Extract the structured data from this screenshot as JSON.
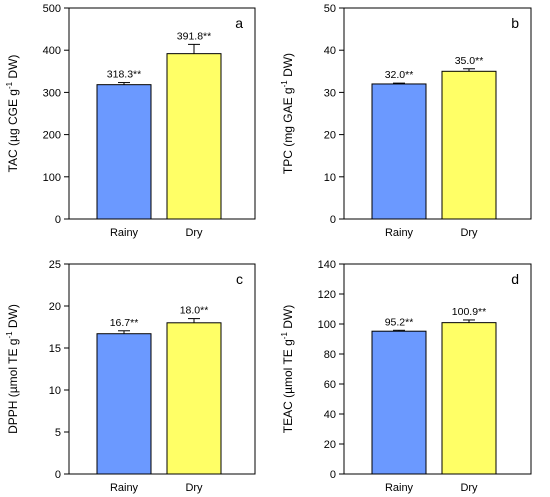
{
  "chart_data": [
    {
      "type": "bar",
      "panel_label": "a",
      "categories": [
        "Rainy",
        "Dry"
      ],
      "values": [
        318.3,
        391.8
      ],
      "errors": [
        5,
        22
      ],
      "data_labels": [
        "318.3**",
        "391.8**"
      ],
      "ylabel": "TAC (µg CGE g-1 DW)",
      "ylabel_parts": {
        "pre": "TAC (µg CGE g",
        "sup": "-1",
        "post": " DW)"
      },
      "ylim": [
        0,
        500
      ],
      "yticks": [
        0,
        100,
        200,
        300,
        400,
        500
      ],
      "colors": [
        "#6b99ff",
        "#ffff66"
      ],
      "grid": false
    },
    {
      "type": "bar",
      "panel_label": "b",
      "categories": [
        "Rainy",
        "Dry"
      ],
      "values": [
        32.0,
        35.0
      ],
      "errors": [
        0.2,
        0.6
      ],
      "data_labels": [
        "32.0**",
        "35.0**"
      ],
      "ylabel": "TPC (mg GAE g-1 DW)",
      "ylabel_parts": {
        "pre": "TPC (mg GAE g",
        "sup": "-1",
        "post": " DW)"
      },
      "ylim": [
        0,
        50
      ],
      "yticks": [
        0,
        10,
        20,
        30,
        40,
        50
      ],
      "colors": [
        "#6b99ff",
        "#ffff66"
      ],
      "grid": false
    },
    {
      "type": "bar",
      "panel_label": "c",
      "categories": [
        "Rainy",
        "Dry"
      ],
      "values": [
        16.7,
        18.0
      ],
      "errors": [
        0.35,
        0.5
      ],
      "data_labels": [
        "16.7**",
        "18.0**"
      ],
      "ylabel": "DPPH (µmol TE g-1 DW)",
      "ylabel_parts": {
        "pre": "DPPH (µmol TE g",
        "sup": "-1",
        "post": " DW)"
      },
      "ylim": [
        0,
        25
      ],
      "yticks": [
        0,
        5,
        10,
        15,
        20,
        25
      ],
      "colors": [
        "#6b99ff",
        "#ffff66"
      ],
      "grid": false
    },
    {
      "type": "bar",
      "panel_label": "d",
      "categories": [
        "Rainy",
        "Dry"
      ],
      "values": [
        95.2,
        100.9
      ],
      "errors": [
        0.6,
        1.8
      ],
      "data_labels": [
        "95.2**",
        "100.9**"
      ],
      "ylabel": "TEAC (µmol TE g-1 DW)",
      "ylabel_parts": {
        "pre": "TEAC (µmol TE g",
        "sup": "-1",
        "post": " DW)"
      },
      "ylim": [
        0,
        140
      ],
      "yticks": [
        0,
        20,
        40,
        60,
        80,
        100,
        120,
        140
      ],
      "colors": [
        "#6b99ff",
        "#ffff66"
      ],
      "grid": false
    }
  ]
}
